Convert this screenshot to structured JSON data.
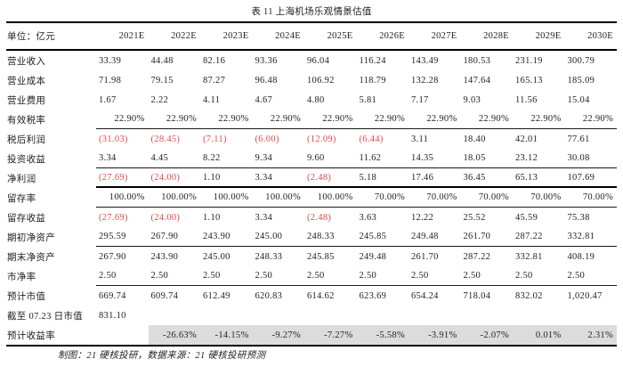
{
  "title": "表 11 上海机场乐观情景估值",
  "footnote": "制图：21 硬核投研，数据来源：21 硬核投研预测",
  "colors": {
    "negative_red": "#e24b48",
    "highlight_gray": "#dcdcdc",
    "text": "#1f1f1f",
    "rule": "#000000"
  },
  "table": {
    "unit_label": "单位：亿元",
    "years": [
      "2021E",
      "2022E",
      "2023E",
      "2024E",
      "2025E",
      "2026E",
      "2027E",
      "2028E",
      "2029E",
      "2030E"
    ],
    "rows": [
      {
        "label": "营业收入",
        "align": "left",
        "values": [
          "33.39",
          "44.48",
          "82.16",
          "93.36",
          "96.04",
          "116.24",
          "143.49",
          "180.53",
          "231.19",
          "300.79"
        ]
      },
      {
        "label": "营业成本",
        "align": "left",
        "values": [
          "71.98",
          "79.15",
          "87.27",
          "96.48",
          "106.92",
          "118.79",
          "132.28",
          "147.64",
          "165.13",
          "185.09"
        ]
      },
      {
        "label": "营业费用",
        "align": "left",
        "values": [
          "1.67",
          "2.22",
          "4.11",
          "4.67",
          "4.80",
          "5.81",
          "7.17",
          "9.03",
          "11.56",
          "15.04"
        ]
      },
      {
        "label": "有效税率",
        "align": "right",
        "rule_below": "thin",
        "values": [
          "22.90%",
          "22.90%",
          "22.90%",
          "22.90%",
          "22.90%",
          "22.90%",
          "22.90%",
          "22.90%",
          "22.90%",
          "22.90%"
        ]
      },
      {
        "label": "税后利润",
        "align": "left",
        "values": [
          "(31.03)",
          "(28.45)",
          "(7.11)",
          "(6.00)",
          "(12.09)",
          "(6.44)",
          "3.11",
          "18.40",
          "42.01",
          "77.61"
        ]
      },
      {
        "label": "投资收益",
        "align": "left",
        "rule_below": "thin",
        "values": [
          "3.34",
          "4.45",
          "8.22",
          "9.34",
          "9.60",
          "11.62",
          "14.35",
          "18.05",
          "23.12",
          "30.08"
        ]
      },
      {
        "label": "净利润",
        "align": "left",
        "rule_below": "thick",
        "values": [
          "(27.69)",
          "(24.00)",
          "1.10",
          "3.34",
          "(2.48)",
          "5.18",
          "17.46",
          "36.45",
          "65.13",
          "107.69"
        ]
      },
      {
        "label": "留存率",
        "align": "right",
        "rule_below": "thin",
        "values": [
          "100.00%",
          "100.00%",
          "100.00%",
          "100.00%",
          "100.00%",
          "70.00%",
          "70.00%",
          "70.00%",
          "70.00%",
          "70.00%"
        ]
      },
      {
        "label": "留存收益",
        "align": "left",
        "values": [
          "(27.69)",
          "(24.00)",
          "1.10",
          "3.34",
          "(2.48)",
          "3.63",
          "12.22",
          "25.52",
          "45.59",
          "75.38"
        ]
      },
      {
        "label": "期初净资产",
        "align": "left",
        "rule_below": "thin",
        "values": [
          "295.59",
          "267.90",
          "243.90",
          "245.00",
          "248.33",
          "245.85",
          "249.48",
          "261.70",
          "287.22",
          "332.81"
        ]
      },
      {
        "label": "期末净资产",
        "align": "left",
        "values": [
          "267.90",
          "243.90",
          "245.00",
          "248.33",
          "245.85",
          "249.48",
          "261.70",
          "287.22",
          "332.81",
          "408.19"
        ]
      },
      {
        "label": "市净率",
        "align": "left",
        "rule_below": "thin",
        "values": [
          "2.50",
          "2.50",
          "2.50",
          "2.50",
          "2.50",
          "2.50",
          "2.50",
          "2.50",
          "2.50",
          "2.50"
        ]
      },
      {
        "label": "预计市值",
        "align": "left",
        "values": [
          "669.74",
          "609.74",
          "612.49",
          "620.83",
          "614.62",
          "623.69",
          "654.24",
          "718.04",
          "832.02",
          "1,020.47"
        ]
      },
      {
        "label": "截至 07.23 日市值",
        "align": "left",
        "values": [
          "831.10",
          "",
          "",
          "",
          "",
          "",
          "",
          "",
          "",
          ""
        ]
      },
      {
        "label": "预计收益率",
        "align": "right",
        "highlight": true,
        "values": [
          "",
          "-26.63%",
          "-14.15%",
          "-9.27%",
          "-7.27%",
          "-5.58%",
          "-3.91%",
          "-2.07%",
          "0.01%",
          "2.31%"
        ]
      }
    ]
  }
}
